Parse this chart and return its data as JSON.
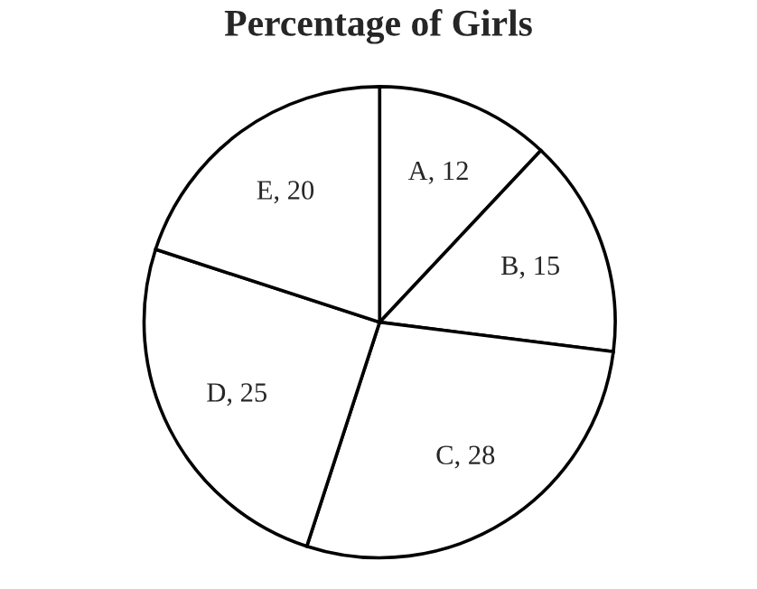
{
  "chart_data": {
    "type": "pie",
    "title": "Percentage of Girls",
    "categories": [
      "A, 12",
      "B, 15",
      "C, 28",
      "D, 25",
      "E, 20"
    ],
    "values": [
      12,
      15,
      28,
      25,
      20
    ],
    "colors": [
      "#ffffff",
      "#ffffff",
      "#ffffff",
      "#ffffff",
      "#ffffff"
    ]
  }
}
